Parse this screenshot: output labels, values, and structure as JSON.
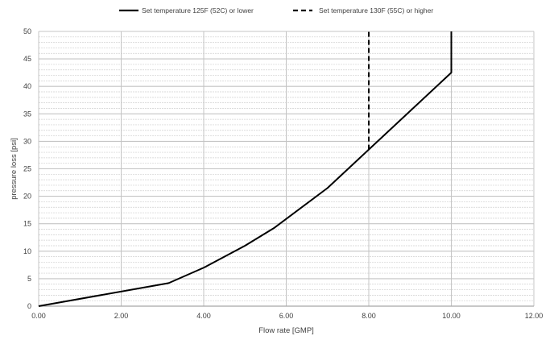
{
  "chart_data": {
    "type": "line",
    "title": "",
    "xlabel": "Flow rate [GMP]",
    "ylabel": "pressure loss [psi]",
    "xlim": [
      0,
      12
    ],
    "ylim": [
      0,
      50
    ],
    "x_ticks": [
      "0.00",
      "2.00",
      "4.00",
      "6.00",
      "8.00",
      "10.00",
      "12.00"
    ],
    "y_ticks": [
      "0",
      "5",
      "10",
      "15",
      "20",
      "25",
      "30",
      "35",
      "40",
      "45",
      "50"
    ],
    "grid": true,
    "legend_position": "top",
    "series": [
      {
        "name": "Set temperature 125F (52C) or lower",
        "style": "solid",
        "color": "#000000",
        "points": [
          [
            0,
            0
          ],
          [
            3.15,
            4.2
          ],
          [
            4.0,
            7.0
          ],
          [
            5.0,
            11.0
          ],
          [
            5.7,
            14.2
          ],
          [
            7.0,
            21.5
          ],
          [
            8.0,
            28.5
          ],
          [
            9.0,
            35.5
          ],
          [
            10.0,
            42.5
          ],
          [
            10.0,
            50
          ]
        ]
      },
      {
        "name": "Set temperature 130F (55C) or higher",
        "style": "dashed",
        "color": "#000000",
        "points": [
          [
            8.0,
            28.5
          ],
          [
            8.0,
            50
          ]
        ]
      }
    ]
  }
}
